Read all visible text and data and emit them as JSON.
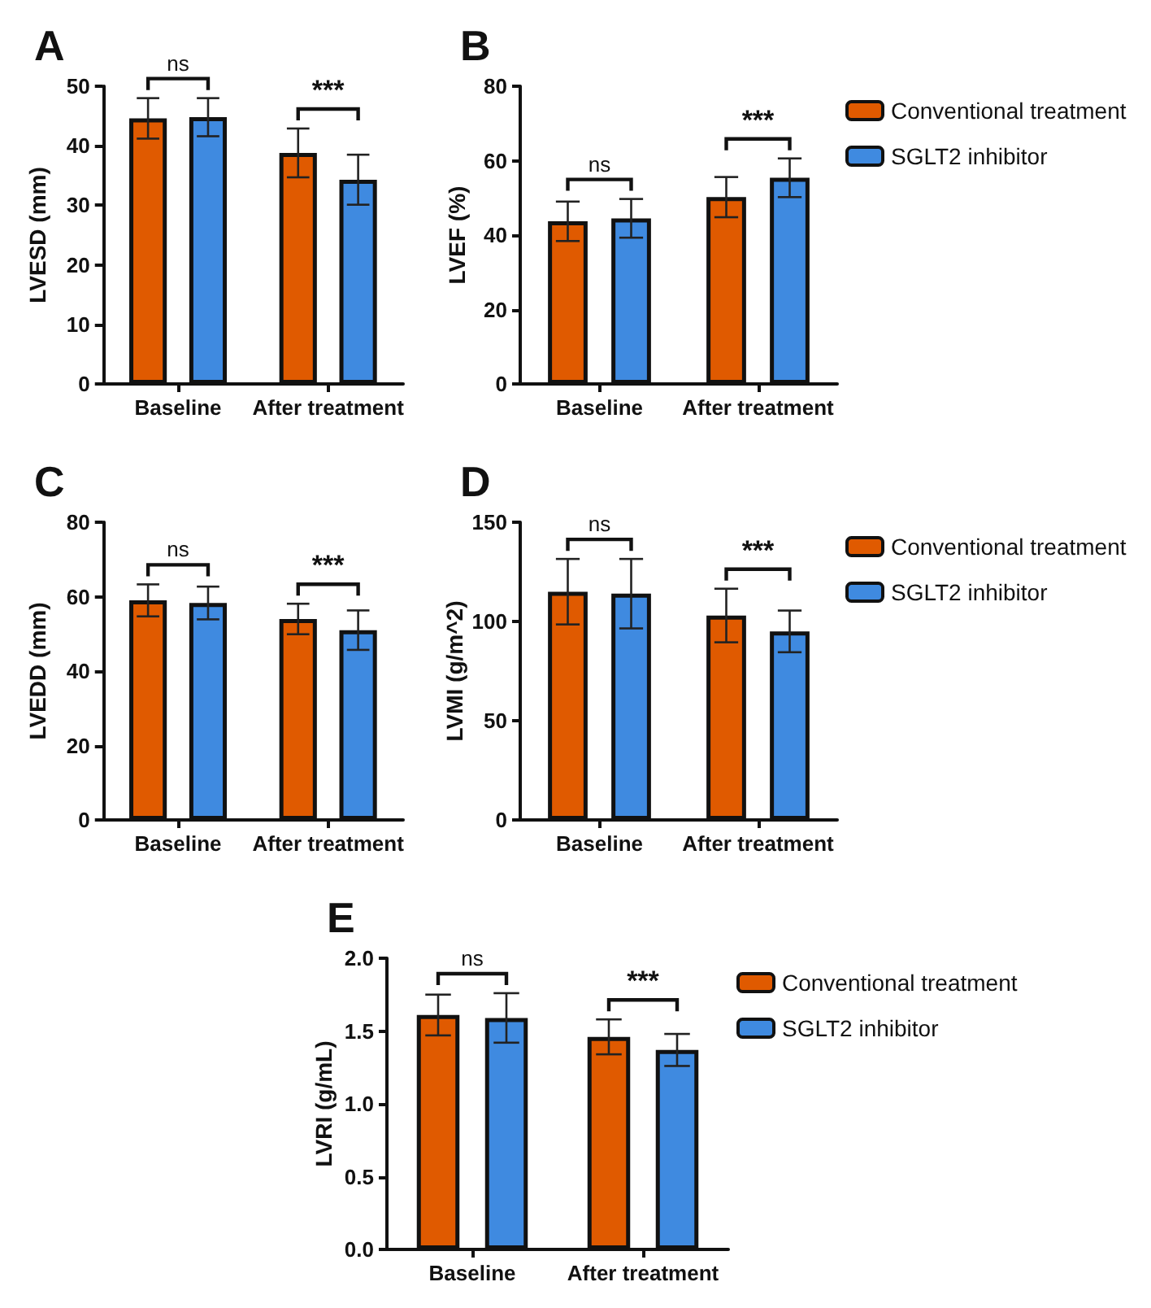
{
  "chart_data": [
    {
      "type": "bar",
      "title": "A",
      "ylabel": "LVESD (mm)",
      "categories": [
        "Baseline",
        "After treatment"
      ],
      "ylim": [
        0,
        50
      ],
      "yticks": [
        0,
        10,
        20,
        30,
        40,
        50
      ],
      "legend": false,
      "annotations": [
        "ns",
        "***"
      ],
      "series": [
        {
          "color": "#e05a00",
          "values": [
            44.6,
            38.8
          ],
          "errors": [
            3.4,
            4.1
          ]
        },
        {
          "color": "#3f8ae0",
          "values": [
            44.8,
            34.3
          ],
          "errors": [
            3.2,
            4.2
          ]
        }
      ]
    },
    {
      "type": "bar",
      "title": "B",
      "ylabel": "LVEF (%)",
      "categories": [
        "Baseline",
        "After treatment"
      ],
      "ylim": [
        0,
        80
      ],
      "yticks": [
        0,
        20,
        40,
        60,
        80
      ],
      "legend": "right",
      "annotations": [
        "ns",
        "***"
      ],
      "series": [
        {
          "name": "Conventional treatment",
          "color": "#e05a00",
          "values": [
            43.7,
            50.2
          ],
          "errors": [
            5.3,
            5.4
          ]
        },
        {
          "name": "SGLT2 inhibitor",
          "color": "#3f8ae0",
          "values": [
            44.5,
            55.4
          ],
          "errors": [
            5.2,
            5.2
          ]
        }
      ]
    },
    {
      "type": "bar",
      "title": "C",
      "ylabel": "LVEDD (mm)",
      "categories": [
        "Baseline",
        "After treatment"
      ],
      "ylim": [
        0,
        80
      ],
      "yticks": [
        0,
        20,
        40,
        60,
        80
      ],
      "legend": false,
      "annotations": [
        "ns",
        "***"
      ],
      "series": [
        {
          "color": "#e05a00",
          "values": [
            59,
            54
          ],
          "errors": [
            4.3,
            4.1
          ]
        },
        {
          "color": "#3f8ae0",
          "values": [
            58.3,
            51
          ],
          "errors": [
            4.4,
            5.3
          ]
        }
      ]
    },
    {
      "type": "bar",
      "title": "D",
      "ylabel": "LVMI (g/m^2)",
      "categories": [
        "Baseline",
        "After treatment"
      ],
      "ylim": [
        0,
        150
      ],
      "yticks": [
        0,
        50,
        100,
        150
      ],
      "legend": "right",
      "annotations": [
        "ns",
        "***"
      ],
      "series": [
        {
          "name": "Conventional treatment",
          "color": "#e05a00",
          "values": [
            115,
            103
          ],
          "errors": [
            16.5,
            13.5
          ]
        },
        {
          "name": "SGLT2 inhibitor",
          "color": "#3f8ae0",
          "values": [
            114,
            95
          ],
          "errors": [
            17.5,
            10.5
          ]
        }
      ]
    },
    {
      "type": "bar",
      "title": "E",
      "ylabel": "LVRI (g/mL)",
      "categories": [
        "Baseline",
        "After treatment"
      ],
      "ylim": [
        0,
        2
      ],
      "yticks": [
        {
          "value": 0,
          "label": "0.0"
        },
        {
          "value": 0.5,
          "label": "0.5"
        },
        {
          "value": 1,
          "label": "1.0"
        },
        {
          "value": 1.5,
          "label": "1.5"
        },
        {
          "value": 2,
          "label": "2.0"
        }
      ],
      "legend": "right",
      "annotations": [
        "ns",
        "***"
      ],
      "series": [
        {
          "name": "Conventional treatment",
          "color": "#e05a00",
          "values": [
            1.61,
            1.46
          ],
          "errors": [
            0.14,
            0.12
          ]
        },
        {
          "name": "SGLT2 inhibitor",
          "color": "#3f8ae0",
          "values": [
            1.59,
            1.37
          ],
          "errors": [
            0.17,
            0.11
          ]
        }
      ]
    }
  ]
}
